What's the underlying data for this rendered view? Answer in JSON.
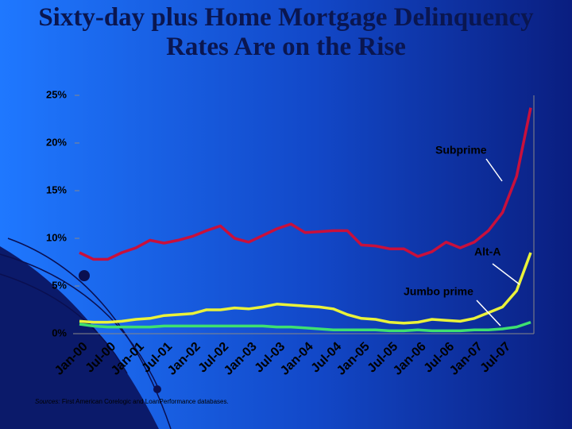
{
  "chart_data": {
    "type": "line",
    "title": "Sixty-day plus Home Mortgage Delinquency Rates Are on the Rise",
    "source_label": "Sources:",
    "source_text": "First American Corelogic and LoanPerformance databases.",
    "categories": [
      "Jan-00",
      null,
      "Jul-00",
      null,
      "Jan-01",
      null,
      "Jul-01",
      null,
      "Jan-02",
      null,
      "Jul-02",
      null,
      "Jan-03",
      null,
      "Jul-03",
      null,
      "Jan-04",
      null,
      "Jul-04",
      null,
      "Jan-05",
      null,
      "Jul-05",
      null,
      "Jan-06",
      null,
      "Jul-06",
      null,
      "Jan-07",
      null,
      "Jul-07",
      null,
      null
    ],
    "series": [
      {
        "name": "Subprime",
        "color": "#c8103c",
        "values": [
          8.5,
          7.8,
          7.8,
          8.5,
          9.0,
          9.8,
          9.5,
          9.8,
          10.2,
          10.8,
          11.3,
          10.0,
          9.6,
          10.3,
          11.0,
          11.5,
          10.6,
          10.7,
          10.8,
          10.8,
          9.3,
          9.2,
          8.9,
          8.9,
          8.1,
          8.6,
          9.6,
          9.0,
          9.6,
          10.8,
          12.7,
          16.5,
          23.7
        ]
      },
      {
        "name": "Alt-A",
        "color": "#eaf23a",
        "values": [
          1.3,
          1.2,
          1.2,
          1.3,
          1.5,
          1.6,
          1.9,
          2.0,
          2.1,
          2.5,
          2.5,
          2.7,
          2.6,
          2.8,
          3.1,
          3.0,
          2.9,
          2.8,
          2.6,
          2.0,
          1.6,
          1.5,
          1.2,
          1.1,
          1.2,
          1.5,
          1.4,
          1.3,
          1.6,
          2.2,
          2.8,
          4.5,
          8.5
        ]
      },
      {
        "name": "Jumbo prime",
        "color": "#3ee070",
        "values": [
          1.0,
          0.8,
          0.7,
          0.7,
          0.7,
          0.7,
          0.8,
          0.8,
          0.8,
          0.8,
          0.8,
          0.8,
          0.8,
          0.8,
          0.7,
          0.7,
          0.6,
          0.5,
          0.4,
          0.4,
          0.4,
          0.4,
          0.3,
          0.3,
          0.4,
          0.3,
          0.3,
          0.3,
          0.4,
          0.4,
          0.5,
          0.7,
          1.2
        ]
      }
    ],
    "ylim": [
      0,
      25
    ],
    "yticks": [
      {
        "value": 0,
        "label": "0%"
      },
      {
        "value": 5,
        "label": "5%"
      },
      {
        "value": 10,
        "label": "10%"
      },
      {
        "value": 15,
        "label": "15%"
      },
      {
        "value": 20,
        "label": "20%"
      },
      {
        "value": 25,
        "label": "25%"
      }
    ]
  }
}
